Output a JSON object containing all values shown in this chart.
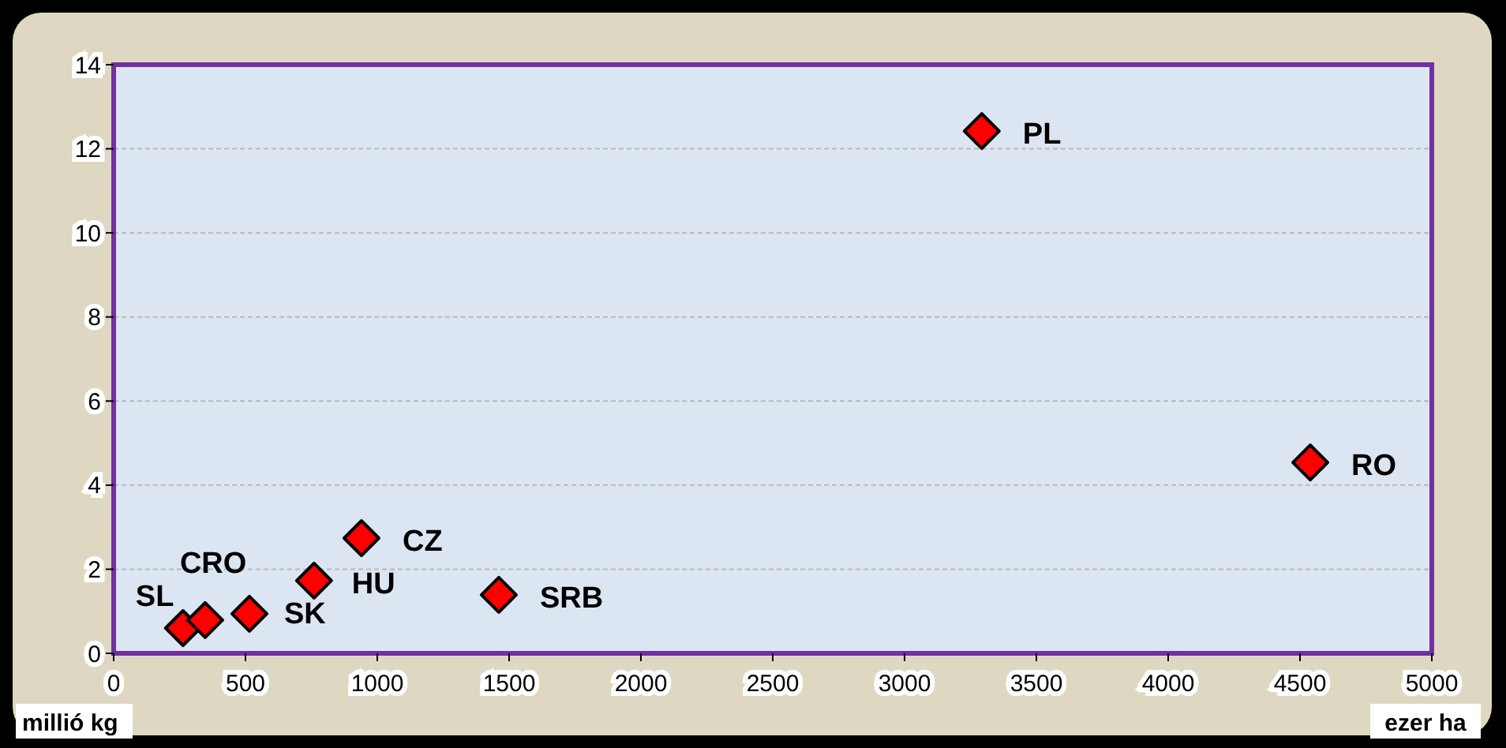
{
  "chart_data": {
    "type": "scatter",
    "xlabel": "ezer ha",
    "ylabel": "millió kg",
    "x": [
      263,
      347,
      515,
      760,
      940,
      1461,
      3293,
      4539
    ],
    "values": [
      0.6,
      0.79,
      0.94,
      1.73,
      2.74,
      1.39,
      12.42,
      4.54
    ],
    "color": "#ff0000",
    "marker": "diamond",
    "xlim": [
      0,
      5000
    ],
    "xticks": [
      0,
      500,
      1000,
      1500,
      2000,
      2500,
      3000,
      3500,
      4000,
      4500,
      5000
    ],
    "ylim": [
      0,
      14
    ],
    "yticks": [
      0,
      2,
      4,
      6,
      8,
      10,
      12,
      14
    ],
    "grid": "y",
    "annotations": [
      {
        "text": "SL",
        "x": 263,
        "y": 0.6
      },
      {
        "text": "CRO",
        "x": 347,
        "y": 0.79
      },
      {
        "text": "SK",
        "x": 515,
        "y": 0.94
      },
      {
        "text": "HU",
        "x": 760,
        "y": 1.73
      },
      {
        "text": "CZ",
        "x": 940,
        "y": 2.74
      },
      {
        "text": "SRB",
        "x": 1461,
        "y": 1.39
      },
      {
        "text": "PL",
        "x": 3293,
        "y": 12.42
      },
      {
        "text": "RO",
        "x": 4539,
        "y": 4.54
      }
    ]
  }
}
